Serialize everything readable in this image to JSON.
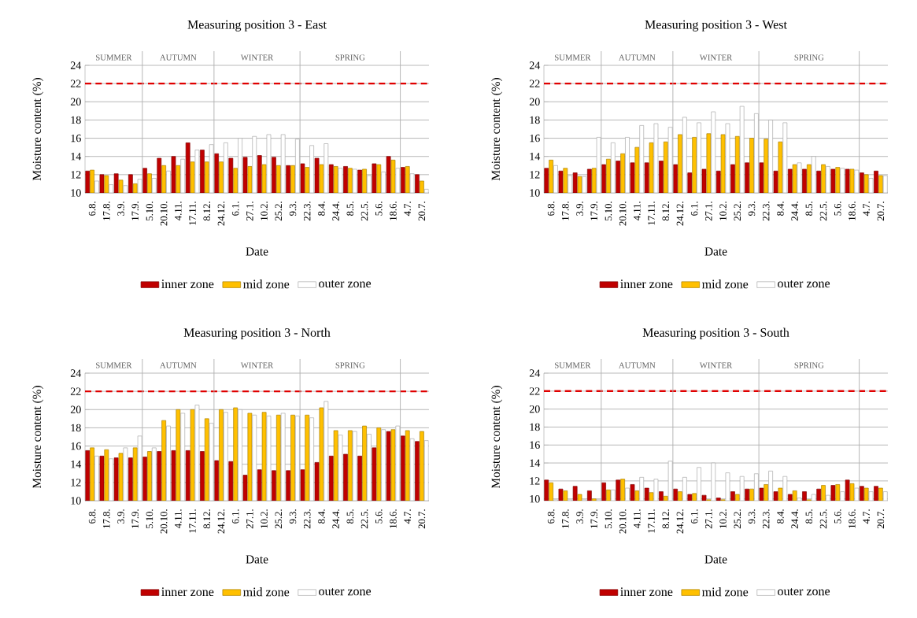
{
  "chart_data": [
    {
      "type": "bar",
      "title": "Measuring position 3 - East",
      "xlabel": "Date",
      "ylabel": "Moisture content  (%)",
      "categories": [
        "6.8.",
        "17.8.",
        "3.9.",
        "17.9.",
        "5.10.",
        "20.10.",
        "4.11.",
        "17.11.",
        "8.12.",
        "24.12.",
        "6.1.",
        "27.1.",
        "10.2.",
        "25.2.",
        "9.3.",
        "22.3.",
        "8.4.",
        "24.4.",
        "8.5.",
        "22.5.",
        "5.6.",
        "18.6.",
        "4.7.",
        "20.7."
      ],
      "series": [
        {
          "name": "inner zone",
          "color": "#c00000",
          "values": [
            12.4,
            12.0,
            12.1,
            12.0,
            12.7,
            13.8,
            14.0,
            15.5,
            14.7,
            14.3,
            13.8,
            13.9,
            14.1,
            13.9,
            13.0,
            13.2,
            13.8,
            13.1,
            12.9,
            12.5,
            13.2,
            14.0,
            12.8,
            12.0
          ]
        },
        {
          "name": "mid zone",
          "color": "#ffc000",
          "values": [
            12.5,
            11.9,
            11.4,
            11.0,
            12.1,
            13.0,
            13.0,
            13.4,
            13.4,
            13.4,
            12.7,
            12.9,
            13.1,
            13.0,
            13.0,
            12.8,
            13.1,
            12.9,
            12.7,
            12.6,
            13.1,
            13.6,
            12.9,
            11.3
          ]
        },
        {
          "name": "outer zone",
          "color": "#ffffff",
          "values": [
            11.3,
            10.9,
            10.8,
            11.5,
            11.6,
            12.4,
            13.7,
            14.7,
            15.3,
            15.5,
            16.0,
            16.2,
            16.4,
            16.4,
            15.9,
            15.2,
            15.4,
            12.7,
            12.6,
            11.9,
            12.3,
            12.7,
            12.1,
            10.4
          ]
        }
      ],
      "ylim": [
        10,
        24
      ],
      "yticks": [
        10,
        12,
        14,
        16,
        18,
        20,
        22,
        24
      ],
      "grid": "y",
      "legend": "bottom",
      "ref_lines": [
        {
          "axis": "y",
          "value": 22,
          "color": "#e00000",
          "line_style": "dashed"
        }
      ],
      "annotations": [
        "SUMMER",
        "AUTUMN",
        "WINTER",
        "SPRING"
      ]
    },
    {
      "type": "bar",
      "title": "Measuring position 3 - West",
      "xlabel": "Date",
      "ylabel": "Moisture content  (%)",
      "categories": [
        "6.8.",
        "17.8.",
        "3.9.",
        "17.9.",
        "5.10.",
        "20.10.",
        "4.11.",
        "17.11.",
        "8.12.",
        "24.12.",
        "6.1.",
        "27.1.",
        "10.2.",
        "25.2.",
        "9.3.",
        "22.3.",
        "8.4.",
        "24.4.",
        "8.5.",
        "22.5.",
        "5.6.",
        "18.6.",
        "4.7.",
        "20.7."
      ],
      "series": [
        {
          "name": "inner zone",
          "color": "#c00000",
          "values": [
            12.7,
            12.4,
            12.2,
            12.6,
            13.1,
            13.5,
            13.3,
            13.3,
            13.5,
            13.1,
            12.2,
            12.6,
            12.4,
            13.1,
            13.3,
            13.3,
            12.4,
            12.6,
            12.6,
            12.4,
            12.6,
            12.6,
            12.2,
            12.4
          ]
        },
        {
          "name": "mid zone",
          "color": "#ffc000",
          "values": [
            13.6,
            12.7,
            11.8,
            12.7,
            13.7,
            14.3,
            15.0,
            15.5,
            15.6,
            16.4,
            16.1,
            16.5,
            16.4,
            16.2,
            16.0,
            15.9,
            15.6,
            13.1,
            13.1,
            13.1,
            12.8,
            12.6,
            12.0,
            11.9
          ]
        },
        {
          "name": "outer zone",
          "color": "#ffffff",
          "values": [
            13.0,
            11.9,
            11.8,
            16.1,
            15.5,
            16.1,
            17.4,
            17.6,
            17.2,
            18.3,
            17.7,
            18.9,
            17.6,
            19.5,
            18.7,
            18.0,
            17.7,
            13.3,
            14.0,
            12.9,
            12.7,
            12.5,
            11.6,
            11.9
          ]
        }
      ],
      "ylim": [
        10,
        24
      ],
      "yticks": [
        10,
        12,
        14,
        16,
        18,
        20,
        22,
        24
      ],
      "grid": "y",
      "legend": "bottom",
      "ref_lines": [
        {
          "axis": "y",
          "value": 22,
          "color": "#e00000",
          "line_style": "dashed"
        }
      ],
      "annotations": [
        "SUMMER",
        "AUTUMN",
        "WINTER",
        "SPRING"
      ]
    },
    {
      "type": "bar",
      "title": "Measuring position 3 - North",
      "xlabel": "Date",
      "ylabel": "Moisture content  (%)",
      "categories": [
        "6.8.",
        "17.8.",
        "3.9.",
        "17.9.",
        "5.10.",
        "20.10.",
        "4.11.",
        "17.11.",
        "8.12.",
        "24.12.",
        "6.1.",
        "27.1.",
        "10.2.",
        "25.2.",
        "9.3.",
        "22.3.",
        "8.4.",
        "24.4.",
        "8.5.",
        "22.5.",
        "5.6.",
        "18.6.",
        "4.7.",
        "20.7."
      ],
      "series": [
        {
          "name": "inner zone",
          "color": "#c00000",
          "values": [
            15.5,
            14.9,
            14.7,
            14.7,
            14.8,
            15.4,
            15.5,
            15.5,
            15.4,
            14.4,
            14.3,
            12.8,
            13.4,
            13.3,
            13.3,
            13.4,
            14.2,
            14.9,
            15.1,
            14.9,
            15.8,
            17.6,
            17.1,
            16.5
          ]
        },
        {
          "name": "mid zone",
          "color": "#ffc000",
          "values": [
            15.8,
            15.6,
            15.2,
            15.8,
            15.4,
            18.8,
            20.0,
            20.0,
            19.0,
            20.0,
            20.2,
            19.6,
            19.7,
            19.4,
            19.4,
            19.4,
            20.2,
            17.7,
            17.7,
            18.2,
            18.0,
            17.8,
            17.7,
            17.6
          ]
        },
        {
          "name": "outer zone",
          "color": "#ffffff",
          "values": [
            14.9,
            14.6,
            15.8,
            17.1,
            15.8,
            18.2,
            19.6,
            20.5,
            18.5,
            19.7,
            20.0,
            19.4,
            19.3,
            19.6,
            19.3,
            19.1,
            20.9,
            17.2,
            17.6,
            17.3,
            17.8,
            18.2,
            16.8,
            16.6
          ]
        }
      ],
      "ylim": [
        10,
        24
      ],
      "yticks": [
        10,
        12,
        14,
        16,
        18,
        20,
        22,
        24
      ],
      "grid": "y",
      "legend": "bottom",
      "ref_lines": [
        {
          "axis": "y",
          "value": 22,
          "color": "#e00000",
          "line_style": "dashed"
        }
      ],
      "annotations": [
        "SUMMER",
        "AUTUMN",
        "WINTER",
        "SPRING"
      ]
    },
    {
      "type": "bar",
      "title": "Measuring position 3 - South",
      "xlabel": "Date",
      "ylabel": "Moisture content  (%)",
      "categories": [
        "6.8.",
        "17.8.",
        "3.9.",
        "17.9.",
        "5.10.",
        "20.10.",
        "4.11.",
        "17.11.",
        "8.12.",
        "24.12.",
        "6.1.",
        "27.1.",
        "10.2.",
        "25.2.",
        "9.3.",
        "22.3.",
        "8.4.",
        "24.4.",
        "8.5.",
        "22.5.",
        "5.6.",
        "18.6.",
        "4.7.",
        "20.7."
      ],
      "series": [
        {
          "name": "inner zone",
          "color": "#c00000",
          "values": [
            12.1,
            11.1,
            11.4,
            10.9,
            11.8,
            12.1,
            11.6,
            11.2,
            10.8,
            11.1,
            10.5,
            10.4,
            10.1,
            10.8,
            11.1,
            11.2,
            10.8,
            10.5,
            10.8,
            11.1,
            11.5,
            12.1,
            11.4,
            11.4
          ]
        },
        {
          "name": "mid zone",
          "color": "#ffc000",
          "values": [
            11.8,
            10.9,
            10.5,
            10.0,
            11.0,
            12.2,
            10.9,
            10.7,
            10.3,
            10.8,
            10.6,
            9.9,
            9.9,
            10.5,
            11.1,
            11.6,
            11.2,
            10.9,
            9.9,
            11.5,
            11.6,
            11.7,
            11.2,
            11.2
          ]
        },
        {
          "name": "outer zone",
          "color": "#ffffff",
          "values": [
            9.9,
            9.9,
            9.9,
            9.9,
            11.0,
            11.2,
            12.4,
            12.2,
            14.2,
            12.4,
            13.5,
            14.0,
            12.9,
            12.5,
            12.8,
            13.1,
            12.5,
            10.1,
            10.5,
            10.4,
            10.8,
            11.2,
            10.8,
            10.8
          ]
        }
      ],
      "ylim": [
        9.8,
        24
      ],
      "yticks": [
        10,
        12,
        14,
        16,
        18,
        20,
        22,
        24
      ],
      "grid": "y",
      "legend": "bottom",
      "ref_lines": [
        {
          "axis": "y",
          "value": 22,
          "color": "#e00000",
          "line_style": "dashed"
        }
      ],
      "annotations": [
        "SUMMER",
        "AUTUMN",
        "WINTER",
        "SPRING"
      ]
    }
  ]
}
